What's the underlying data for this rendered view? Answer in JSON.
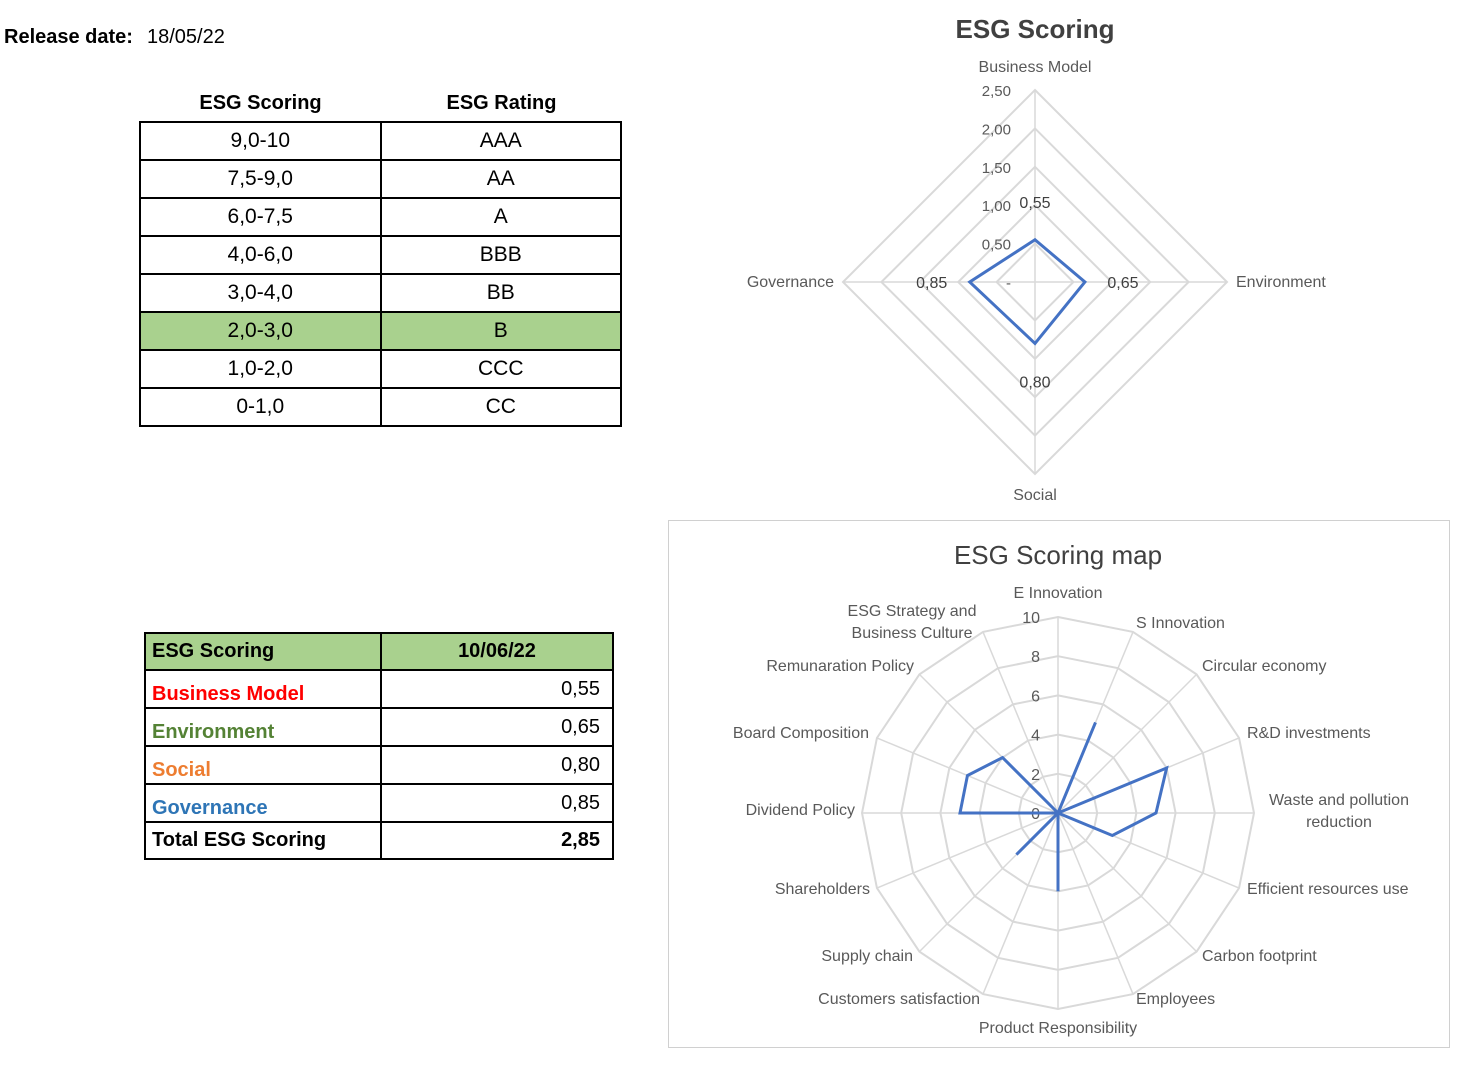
{
  "release": {
    "label": "Release date:",
    "value": "18/05/22"
  },
  "rating_table": {
    "headers": [
      "ESG Scoring",
      "ESG Rating"
    ],
    "rows": [
      [
        "9,0-10",
        "AAA"
      ],
      [
        "7,5-9,0",
        "AA"
      ],
      [
        "6,0-7,5",
        "A"
      ],
      [
        "4,0-6,0",
        "BBB"
      ],
      [
        "3,0-4,0",
        "BB"
      ],
      [
        "2,0-3,0",
        "B"
      ],
      [
        "1,0-2,0",
        "CCC"
      ],
      [
        "0-1,0",
        "CC"
      ]
    ],
    "highlight_row": 5,
    "highlight_color": "#a9d18e"
  },
  "score_table": {
    "header_label": "ESG Scoring",
    "header_date": "10/06/22",
    "rows": [
      {
        "label": "Business Model",
        "value": "0,55",
        "color": "#ff0000"
      },
      {
        "label": "Environment",
        "value": "0,65",
        "color": "#548235"
      },
      {
        "label": "Social",
        "value": "0,80",
        "color": "#ed7d31"
      },
      {
        "label": "Governance",
        "value": "0,85",
        "color": "#2e75b6"
      }
    ],
    "total_label": "Total ESG Scoring",
    "total_value": "2,85"
  },
  "chart_data": [
    {
      "type": "radar",
      "title": "ESG Scoring",
      "categories": [
        "Business Model",
        "Environment",
        "Social",
        "Governance"
      ],
      "values": [
        0.55,
        0.65,
        0.8,
        0.85
      ],
      "data_labels": [
        "0,55",
        "0,65",
        "0,80",
        "0,85"
      ],
      "rlim": [
        0,
        2.5
      ],
      "tick_labels": [
        "-",
        "0,50",
        "1,00",
        "1,50",
        "2,00",
        "2,50"
      ],
      "series_color": "#4472c4",
      "grid_color": "#d9d9d9"
    },
    {
      "type": "radar",
      "title": "ESG Scoring map",
      "categories": [
        "E Innovation",
        "S Innovation",
        "Circular economy",
        "R&D investments",
        "Waste and pollution reduction",
        "Efficient resources use",
        "Carbon footprint",
        "Employees",
        "Product Responsibility",
        "Customers satisfaction",
        "Supply chain",
        "Shareholders",
        "Dividend Policy",
        "Board Composition",
        "Remunaration Policy",
        "ESG Strategy and Business Culture"
      ],
      "values": [
        0,
        5,
        0,
        6,
        5,
        3,
        0,
        0,
        4,
        0,
        3,
        0,
        5,
        5,
        4,
        0
      ],
      "rlim": [
        0,
        10
      ],
      "tick_labels": [
        "0",
        "2",
        "4",
        "6",
        "8",
        "10"
      ],
      "series_color": "#4472c4",
      "grid_color": "#d9d9d9"
    }
  ]
}
